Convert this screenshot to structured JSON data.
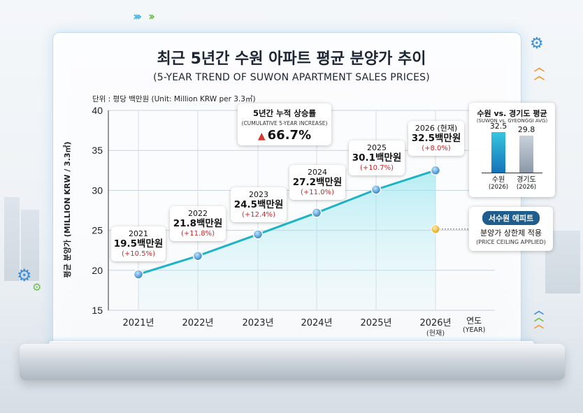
{
  "title": "최근 5년간 수원 아파트 평균 분양가 추이",
  "subtitle": "(5-YEAR TREND OF SUWON APARTMENT SALES PRICES)",
  "unit_label": "단위 : 평당 백만원 (Unit: Million KRW per 3.3㎡)",
  "colors": {
    "line": "#1fb3c6",
    "point": "#3f8fd0",
    "accent_red": "#c62828",
    "ceiling_badge": "#1f5d8c"
  },
  "chart_data": {
    "type": "line",
    "title": "최근 5년간 수원 아파트 평균 분양가 추이",
    "subtitle": "(5-YEAR TREND OF SUWON APARTMENT SALES PRICES)",
    "xlabel": "연도",
    "xlabel_en": "(YEAR)",
    "ylabel": "평균 분양가 (MILLION KRW / 3.3㎡)",
    "ylim": [
      15,
      40
    ],
    "yticks": [
      "15",
      "20",
      "25",
      "30",
      "35",
      "40"
    ],
    "ytick_values": [
      15,
      20,
      25,
      30,
      35,
      40
    ],
    "categories": [
      "2021년",
      "2022년",
      "2023년",
      "2024년",
      "2025년",
      "2026년"
    ],
    "category_sub": [
      "",
      "",
      "",
      "",
      "",
      "(현재)"
    ],
    "grid": true,
    "series": [
      {
        "values": [
          19.5,
          21.8,
          24.5,
          27.2,
          30.1,
          32.5
        ]
      }
    ],
    "data_labels": [
      {
        "year": "2021",
        "value": "19.5백만원",
        "change": "(+10.5%)"
      },
      {
        "year": "2022",
        "value": "21.8백만원",
        "change": "(+11.8%)"
      },
      {
        "year": "2023",
        "value": "24.5백만원",
        "change": "(+12.4%)"
      },
      {
        "year": "2024",
        "value": "27.2백만원",
        "change": "(+11.0%)"
      },
      {
        "year": "2025",
        "value": "30.1백만원",
        "change": "(+10.7%)"
      },
      {
        "year": "2026 (현재)",
        "value": "32.5백만원",
        "change": "(+8.0%)"
      }
    ],
    "annotations": {
      "cumulative": {
        "title": "5년간 누적 상승률",
        "subtitle": "(CUMULATIVE 5-YEAR INCREASE)",
        "value": "66.7%"
      },
      "ceiling": {
        "value": 25.5,
        "badge": "서수원 에피트",
        "line1": "분양가 상한제 적용",
        "line2": "(PRICE CEILING APPLIED)"
      }
    },
    "comparison": {
      "type": "bar",
      "title": "수원 vs. 경기도 평균",
      "subtitle": "(SUWON vs. GYEONGGI AVG)",
      "categories": [
        "수원",
        "경기도"
      ],
      "category_sub": [
        "(2026)",
        "(2026)"
      ],
      "values": [
        32.5,
        29.8
      ],
      "value_labels": [
        "32.5",
        "29.8"
      ]
    }
  }
}
